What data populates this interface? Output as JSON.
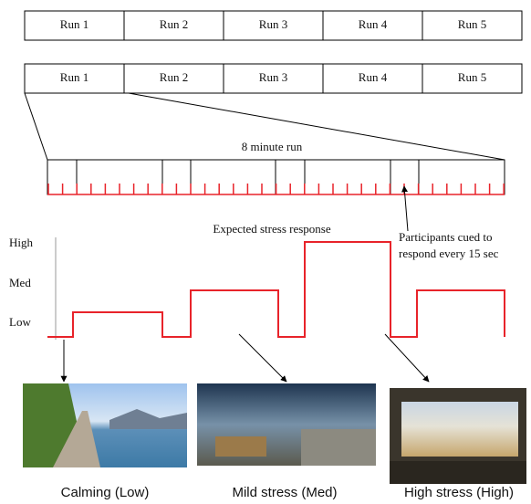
{
  "runs_top": [
    "Run 1",
    "Run 2",
    "Run 3",
    "Run 4",
    "Run 5"
  ],
  "runs_bottom": [
    "Run 1",
    "Run 2",
    "Run 3",
    "Run 4",
    "Run 5"
  ],
  "timeline": {
    "title": "8 minute run"
  },
  "stress_plot": {
    "title": "Expected stress response",
    "levels": [
      "High",
      "Med",
      "Low"
    ],
    "annotation": [
      "Participants cued to",
      "respond every 15 sec"
    ]
  },
  "images": [
    {
      "caption": "Calming (Low)"
    },
    {
      "caption": "Mild stress (Med)"
    },
    {
      "caption": "High stress (High)"
    }
  ]
}
